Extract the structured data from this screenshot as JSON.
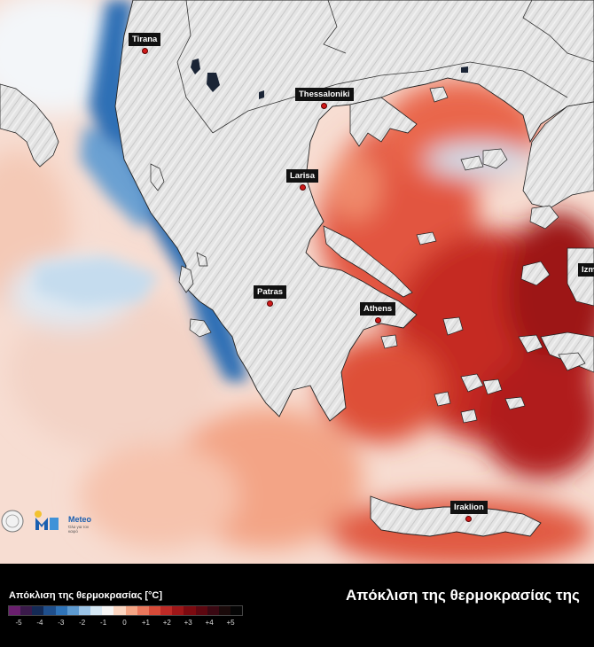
{
  "cities": [
    {
      "id": "tirana",
      "label": "Tirana"
    },
    {
      "id": "thessaloniki",
      "label": "Thessaloniki"
    },
    {
      "id": "larisa",
      "label": "Larisa"
    },
    {
      "id": "patras",
      "label": "Patras"
    },
    {
      "id": "athens",
      "label": "Athens"
    },
    {
      "id": "iraklion",
      "label": "Iraklion"
    },
    {
      "id": "izmir",
      "label": "Izm"
    }
  ],
  "logo": {
    "brand": "Meteo",
    "tagline": "Όλα για τον καιρό"
  },
  "legend": {
    "title": "Απόκλιση της θερμοκρασίας [°C]",
    "ticks": [
      "-5",
      "-4",
      "-3",
      "-2",
      "-1",
      "0",
      "+1",
      "+2",
      "+3",
      "+4",
      "+5"
    ],
    "colors": [
      "#6a1f6e",
      "#3a1a4a",
      "#142a55",
      "#1f4f8c",
      "#2f73b8",
      "#5d9ad0",
      "#9cc4e6",
      "#d6e8f4",
      "#f5f5f5",
      "#fbd5c0",
      "#f4a585",
      "#e9775c",
      "#d64a38",
      "#bd2a26",
      "#9e1618",
      "#7c0a10",
      "#5d0710",
      "#3a0812",
      "#1a0a0a",
      "#050505"
    ]
  },
  "headline": "Απόκλιση της θερμοκρασίας της"
}
